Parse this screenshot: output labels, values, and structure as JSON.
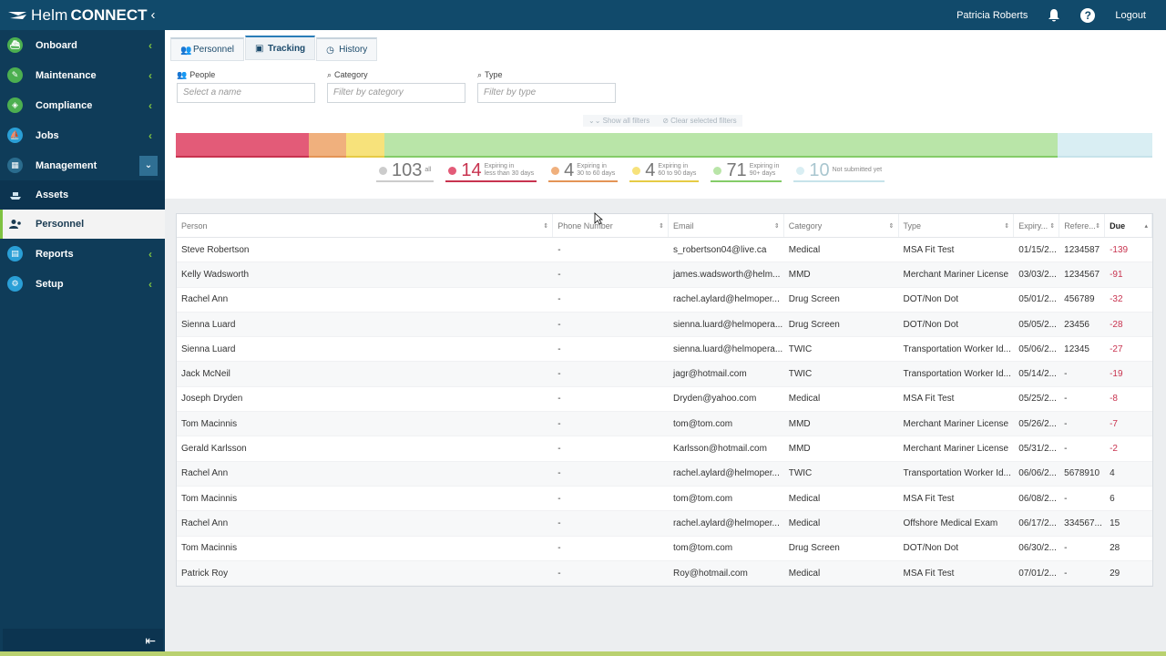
{
  "app": {
    "brand_light": "Helm",
    "brand_bold": "CONNECT",
    "collapse_glyph": "‹"
  },
  "header": {
    "user_name": "Patricia Roberts",
    "logout_label": "Logout",
    "help_glyph": "?"
  },
  "sidebar": {
    "items": [
      {
        "label": "Onboard",
        "icon": "onboard-icon"
      },
      {
        "label": "Maintenance",
        "icon": "maintenance-icon"
      },
      {
        "label": "Compliance",
        "icon": "compliance-icon"
      },
      {
        "label": "Jobs",
        "icon": "jobs-icon"
      },
      {
        "label": "Management",
        "icon": "management-icon"
      }
    ],
    "sub_items": [
      {
        "label": "Assets",
        "icon": "assets-icon"
      },
      {
        "label": "Personnel",
        "icon": "personnel-icon"
      }
    ],
    "items_after": [
      {
        "label": "Reports",
        "icon": "reports-icon"
      },
      {
        "label": "Setup",
        "icon": "setup-icon"
      }
    ]
  },
  "tabs": [
    {
      "label": "Personnel"
    },
    {
      "label": "Tracking"
    },
    {
      "label": "History"
    }
  ],
  "filters": {
    "people": {
      "label": "People",
      "placeholder": "Select a name"
    },
    "category": {
      "label": "Category",
      "placeholder": "Filter by category"
    },
    "type": {
      "label": "Type",
      "placeholder": "Filter by type"
    },
    "show_all": "Show all filters",
    "clear": "Clear selected filters"
  },
  "stats": {
    "all": {
      "count": "103",
      "label": "all"
    },
    "red": {
      "count": "14",
      "label1": "Expiring in",
      "label2": "less than 30 days"
    },
    "orange": {
      "count": "4",
      "label1": "Expiring in",
      "label2": "30 to 60 days"
    },
    "yellow": {
      "count": "4",
      "label1": "Expiring in",
      "label2": "60 to 90 days"
    },
    "green": {
      "count": "71",
      "label1": "Expiring in",
      "label2": "90+ days"
    },
    "blue": {
      "count": "10",
      "label": "Not submitted yet"
    }
  },
  "colors": {
    "red": "#e35b78",
    "orange": "#f0b07d",
    "yellow": "#f7e27b",
    "green": "#b9e5a8",
    "blue": "#d9eef3",
    "gray": "#cccccc"
  },
  "table": {
    "headers": [
      "Person",
      "Phone Number",
      "Email",
      "Category",
      "Type",
      "Expiry...",
      "Refere...",
      "Due"
    ],
    "rows": [
      [
        "Steve Robertson",
        "-",
        "s_robertson04@live.ca",
        "Medical",
        "MSA Fit Test",
        "01/15/2...",
        "1234587",
        "-139"
      ],
      [
        "Kelly Wadsworth",
        "-",
        "james.wadsworth@helm...",
        "MMD",
        "Merchant Mariner License",
        "03/03/2...",
        "1234567",
        "-91"
      ],
      [
        "Rachel Ann",
        "-",
        "rachel.aylard@helmoper...",
        "Drug Screen",
        "DOT/Non Dot",
        "05/01/2...",
        "456789",
        "-32"
      ],
      [
        "Sienna Luard",
        "-",
        "sienna.luard@helmopera...",
        "Drug Screen",
        "DOT/Non Dot",
        "05/05/2...",
        "23456",
        "-28"
      ],
      [
        "Sienna Luard",
        "-",
        "sienna.luard@helmopera...",
        "TWIC",
        "Transportation Worker Id...",
        "05/06/2...",
        "12345",
        "-27"
      ],
      [
        "Jack McNeil",
        "-",
        "jagr@hotmail.com",
        "TWIC",
        "Transportation Worker Id...",
        "05/14/2...",
        "-",
        "-19"
      ],
      [
        "Joseph Dryden",
        "-",
        "Dryden@yahoo.com",
        "Medical",
        "MSA Fit Test",
        "05/25/2...",
        "-",
        "-8"
      ],
      [
        "Tom Macinnis",
        "-",
        "tom@tom.com",
        "MMD",
        "Merchant Mariner License",
        "05/26/2...",
        "-",
        "-7"
      ],
      [
        "Gerald Karlsson",
        "-",
        "Karlsson@hotmail.com",
        "MMD",
        "Merchant Mariner License",
        "05/31/2...",
        "-",
        "-2"
      ],
      [
        "Rachel Ann",
        "-",
        "rachel.aylard@helmoper...",
        "TWIC",
        "Transportation Worker Id...",
        "06/06/2...",
        "5678910",
        "4"
      ],
      [
        "Tom Macinnis",
        "-",
        "tom@tom.com",
        "Medical",
        "MSA Fit Test",
        "06/08/2...",
        "-",
        "6"
      ],
      [
        "Rachel Ann",
        "-",
        "rachel.aylard@helmoper...",
        "Medical",
        "Offshore Medical Exam",
        "06/17/2...",
        "334567...",
        "15"
      ],
      [
        "Tom Macinnis",
        "-",
        "tom@tom.com",
        "Drug Screen",
        "DOT/Non Dot",
        "06/30/2...",
        "-",
        "28"
      ],
      [
        "Patrick Roy",
        "-",
        "Roy@hotmail.com",
        "Medical",
        "MSA Fit Test",
        "07/01/2...",
        "-",
        "29"
      ]
    ]
  }
}
